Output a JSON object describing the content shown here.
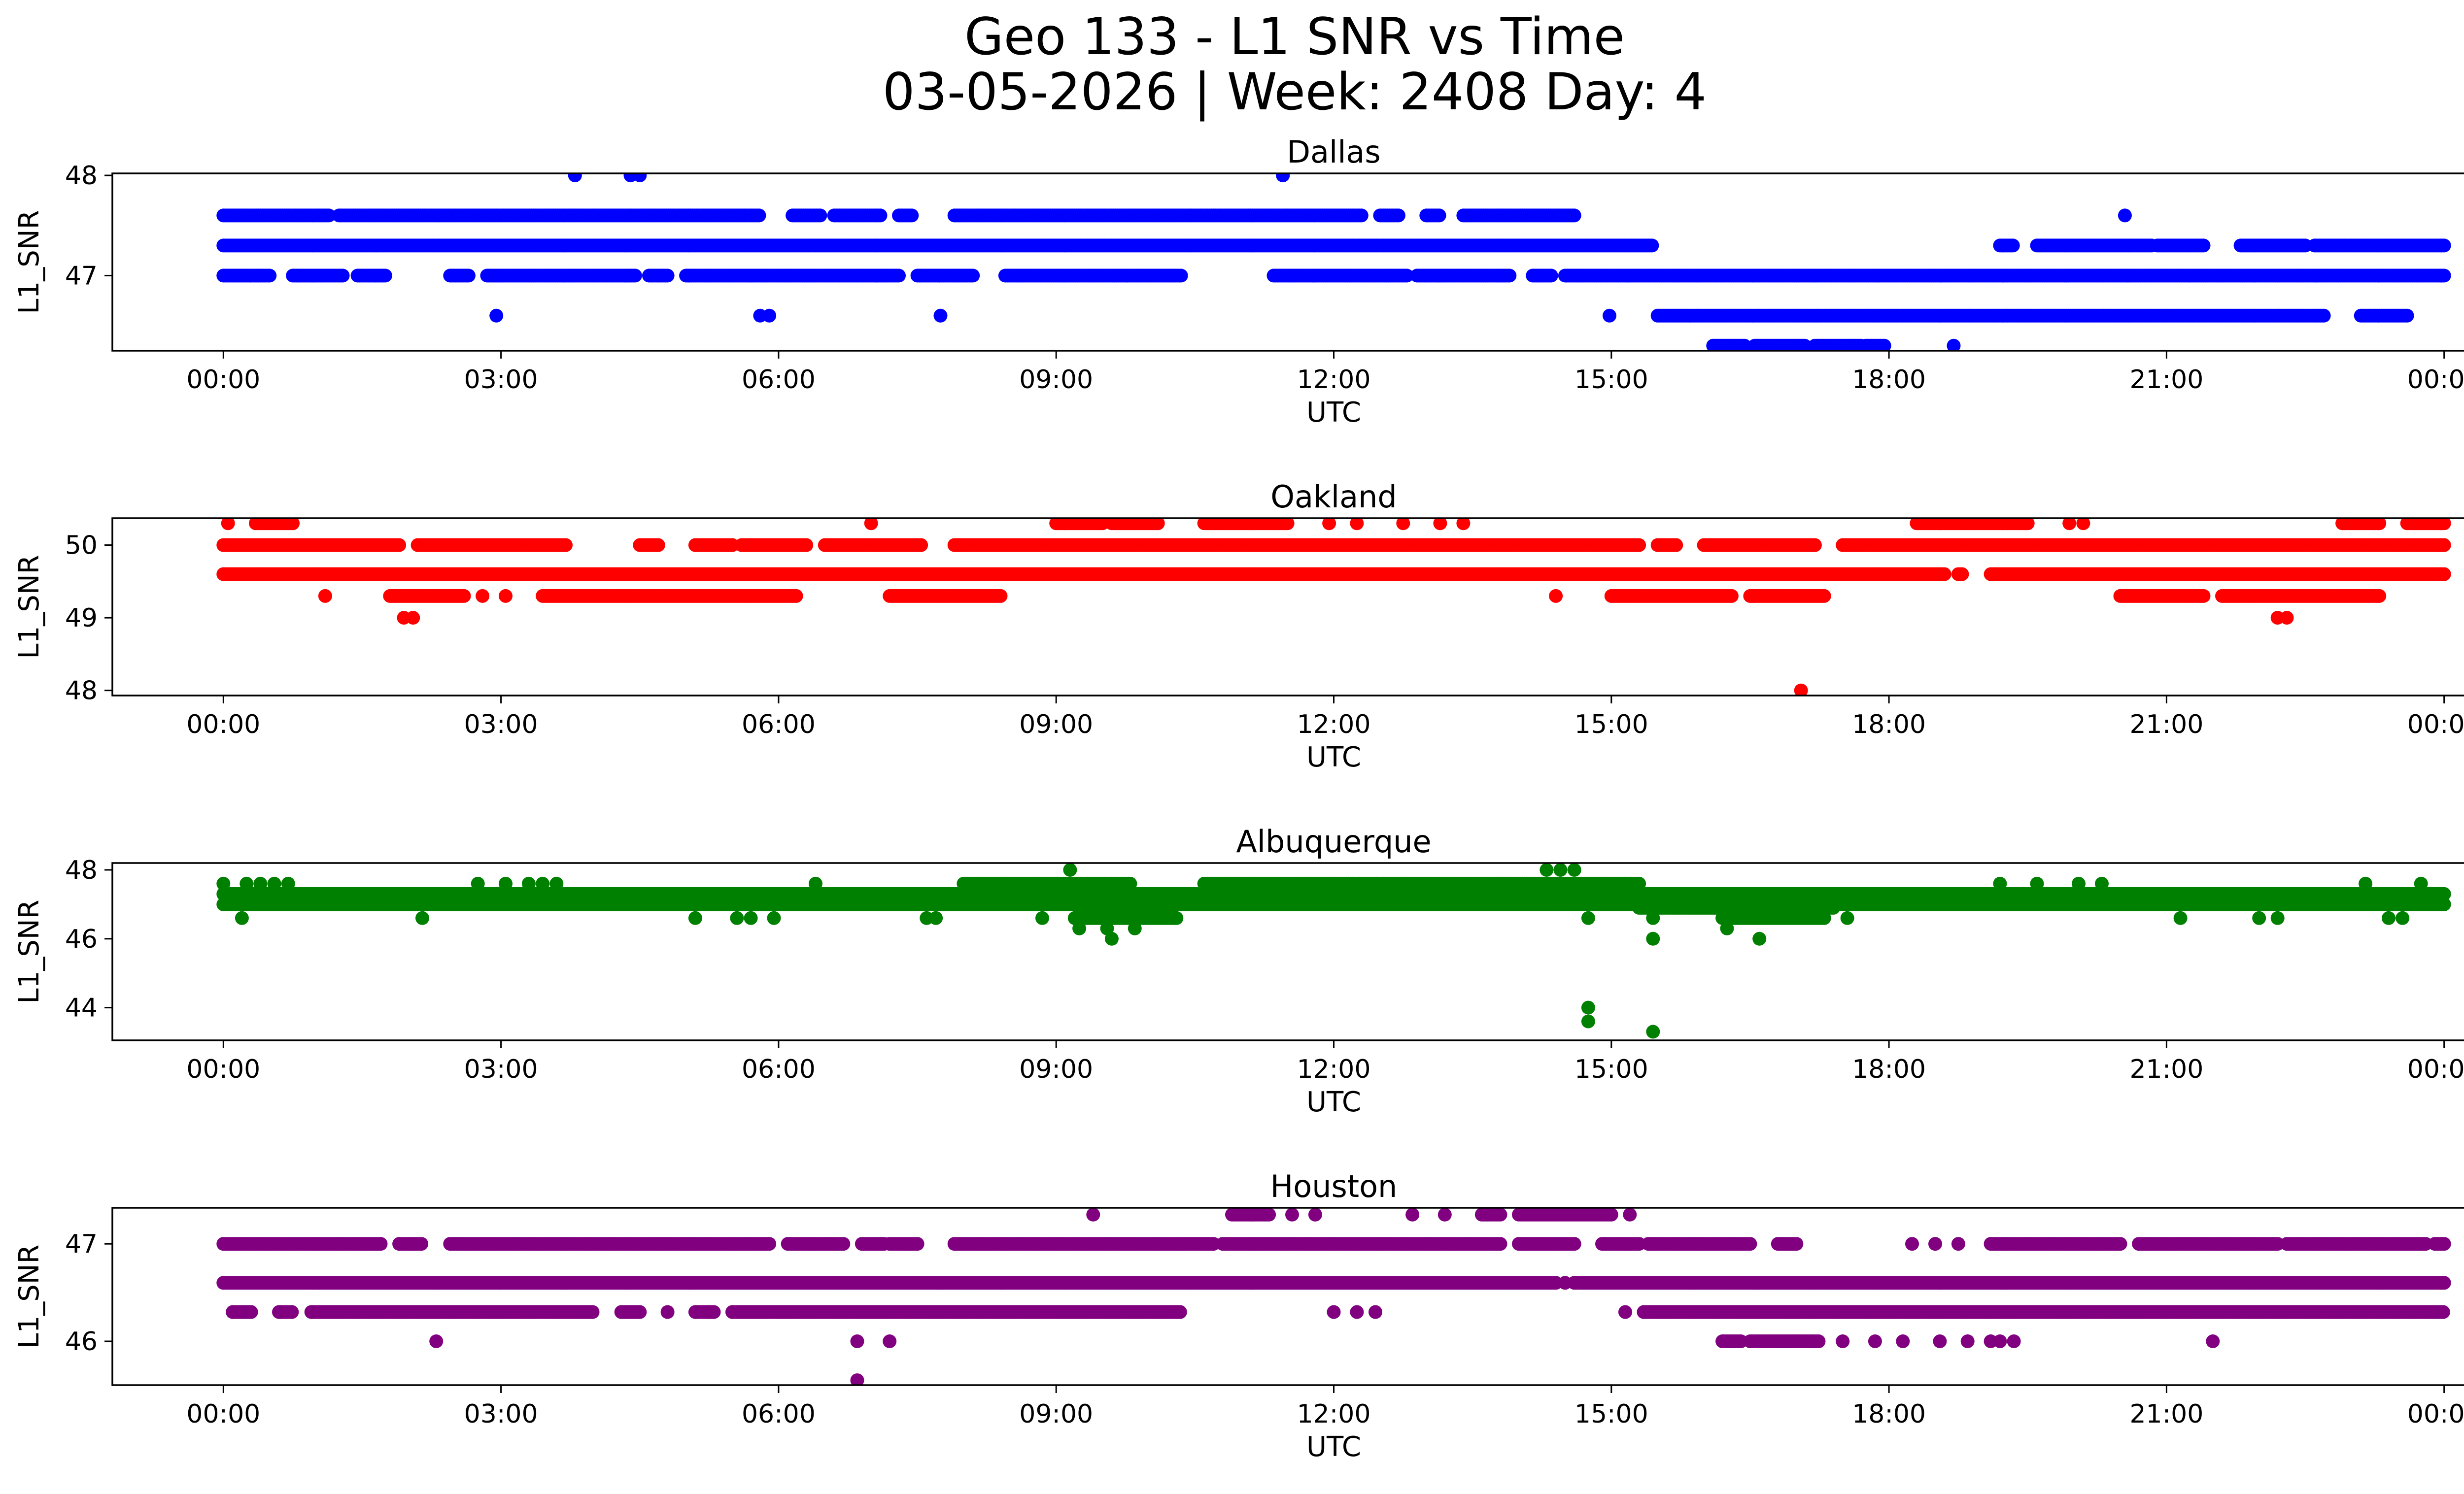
{
  "suptitle": {
    "line1": "Geo 133 - L1 SNR vs Time",
    "line2": "03-05-2026 | Week: 2408 Day: 4"
  },
  "chart_data": [
    {
      "type": "scatter",
      "title": "Dallas",
      "xlabel": "UTC",
      "ylabel": "L1_SNR",
      "color": "#0000ff",
      "xlim": [
        -1.2,
        25.2
      ],
      "ylim": [
        46.25,
        48.02
      ],
      "yticks": [
        47,
        48
      ],
      "xticks": [
        0,
        3,
        6,
        9,
        12,
        15,
        18,
        21,
        24
      ],
      "xticklabels": [
        "00:00",
        "03:00",
        "06:00",
        "09:00",
        "12:00",
        "15:00",
        "18:00",
        "21:00",
        "00:00"
      ],
      "series": [
        {
          "y": 47.3,
          "segments": [
            [
              0.0,
              15.45
            ]
          ]
        },
        {
          "y": 47.0,
          "segments": [
            [
              0.0,
              0.5
            ],
            [
              0.75,
              1.3
            ],
            [
              1.45,
              1.75
            ],
            [
              2.45,
              2.65
            ],
            [
              2.85,
              4.45
            ],
            [
              4.6,
              4.8
            ],
            [
              5.0,
              7.3
            ],
            [
              7.5,
              8.1
            ],
            [
              8.45,
              10.35
            ],
            [
              11.35,
              12.8
            ],
            [
              12.9,
              13.9
            ],
            [
              14.15,
              14.35
            ],
            [
              14.5,
              24.0
            ]
          ]
        },
        {
          "y": 47.6,
          "segments": [
            [
              0.0,
              1.15
            ],
            [
              1.25,
              5.8
            ],
            [
              6.15,
              6.45
            ],
            [
              6.6,
              7.1
            ],
            [
              7.3,
              7.45
            ],
            [
              7.9,
              12.3
            ],
            [
              12.5,
              12.7
            ],
            [
              13.0,
              13.15
            ],
            [
              13.4,
              14.6
            ]
          ]
        },
        {
          "y": 46.6,
          "segments": [
            [
              15.5,
              22.7
            ],
            [
              23.1,
              23.6
            ]
          ]
        },
        {
          "y": 46.3,
          "segments": [
            [
              16.1,
              16.45
            ],
            [
              16.55,
              17.1
            ],
            [
              17.2,
              17.7
            ],
            [
              17.75,
              17.95
            ]
          ]
        },
        {
          "y": 47.3,
          "segments": [
            [
              19.2,
              19.35
            ],
            [
              19.6,
              20.85
            ],
            [
              20.9,
              21.4
            ],
            [
              21.8,
              22.5
            ],
            [
              22.6,
              24.0
            ]
          ]
        }
      ],
      "points": [
        {
          "x": 2.95,
          "y": 46.6
        },
        {
          "x": 5.8,
          "y": 46.6
        },
        {
          "x": 5.9,
          "y": 46.6
        },
        {
          "x": 7.75,
          "y": 46.6
        },
        {
          "x": 14.98,
          "y": 46.6
        },
        {
          "x": 18.7,
          "y": 46.3
        },
        {
          "x": 3.8,
          "y": 48.0
        },
        {
          "x": 4.4,
          "y": 48.0
        },
        {
          "x": 4.5,
          "y": 48.0
        },
        {
          "x": 11.45,
          "y": 48.0
        },
        {
          "x": 20.55,
          "y": 47.6
        }
      ]
    },
    {
      "type": "scatter",
      "title": "Oakland",
      "xlabel": "UTC",
      "ylabel": "L1_SNR",
      "color": "#ff0000",
      "xlim": [
        -1.2,
        25.2
      ],
      "ylim": [
        47.93,
        50.37
      ],
      "yticks": [
        48,
        49,
        50
      ],
      "xticks": [
        0,
        3,
        6,
        9,
        12,
        15,
        18,
        21,
        24
      ],
      "xticklabels": [
        "00:00",
        "03:00",
        "06:00",
        "09:00",
        "12:00",
        "15:00",
        "18:00",
        "21:00",
        "00:00"
      ],
      "series": [
        {
          "y": 49.6,
          "segments": [
            [
              0.0,
              18.6
            ],
            [
              18.75,
              18.8
            ],
            [
              19.1,
              24.0
            ]
          ]
        },
        {
          "y": 50.0,
          "segments": [
            [
              0.0,
              1.9
            ],
            [
              2.1,
              3.7
            ],
            [
              4.5,
              4.7
            ],
            [
              5.1,
              5.5
            ],
            [
              5.6,
              6.3
            ],
            [
              6.5,
              7.55
            ],
            [
              7.9,
              15.3
            ],
            [
              15.5,
              15.7
            ],
            [
              16.0,
              17.2
            ],
            [
              17.5,
              24.0
            ]
          ]
        },
        {
          "y": 49.3,
          "segments": [
            [
              1.8,
              2.6
            ],
            [
              3.45,
              6.2
            ],
            [
              7.2,
              8.4
            ],
            [
              15.0,
              16.3
            ],
            [
              16.5,
              17.3
            ],
            [
              20.5,
              21.4
            ],
            [
              21.6,
              23.3
            ]
          ]
        },
        {
          "y": 50.3,
          "segments": [
            [
              0.35,
              0.75
            ],
            [
              9.0,
              9.5
            ],
            [
              9.6,
              10.1
            ],
            [
              10.6,
              11.5
            ],
            [
              18.3,
              19.5
            ],
            [
              22.9,
              23.3
            ],
            [
              23.6,
              24.0
            ]
          ]
        }
      ],
      "points": [
        {
          "x": 0.05,
          "y": 50.3
        },
        {
          "x": 7.0,
          "y": 50.3
        },
        {
          "x": 11.95,
          "y": 50.3
        },
        {
          "x": 12.25,
          "y": 50.3
        },
        {
          "x": 12.75,
          "y": 50.3
        },
        {
          "x": 13.15,
          "y": 50.3
        },
        {
          "x": 13.4,
          "y": 50.3
        },
        {
          "x": 19.95,
          "y": 50.3
        },
        {
          "x": 20.1,
          "y": 50.3
        },
        {
          "x": 1.1,
          "y": 49.3
        },
        {
          "x": 2.8,
          "y": 49.3
        },
        {
          "x": 3.05,
          "y": 49.3
        },
        {
          "x": 14.4,
          "y": 49.3
        },
        {
          "x": 1.95,
          "y": 49.0
        },
        {
          "x": 2.05,
          "y": 49.0
        },
        {
          "x": 22.2,
          "y": 49.0
        },
        {
          "x": 22.3,
          "y": 49.0
        },
        {
          "x": 17.05,
          "y": 48.0
        }
      ]
    },
    {
      "type": "scatter",
      "title": "Albuquerque",
      "xlabel": "UTC",
      "ylabel": "L1_SNR",
      "color": "#008000",
      "xlim": [
        -1.2,
        25.2
      ],
      "ylim": [
        43.05,
        48.2
      ],
      "yticks": [
        44,
        46,
        48
      ],
      "xticks": [
        0,
        3,
        6,
        9,
        12,
        15,
        18,
        21,
        24
      ],
      "xticklabels": [
        "00:00",
        "03:00",
        "06:00",
        "09:00",
        "12:00",
        "15:00",
        "18:00",
        "21:00",
        "00:00"
      ],
      "series": [
        {
          "y": 47.0,
          "segments": [
            [
              0.0,
              24.0
            ]
          ]
        },
        {
          "y": 47.3,
          "segments": [
            [
              0.0,
              24.0
            ]
          ]
        },
        {
          "y": 47.6,
          "segments": [
            [
              8.0,
              9.8
            ],
            [
              10.6,
              15.3
            ]
          ]
        },
        {
          "y": 46.6,
          "segments": [
            [
              9.2,
              10.3
            ],
            [
              16.2,
              17.3
            ]
          ]
        },
        {
          "y": 46.9,
          "segments": [
            [
              15.3,
              17.4
            ]
          ]
        }
      ],
      "points": [
        {
          "x": 0.0,
          "y": 47.6
        },
        {
          "x": 0.25,
          "y": 47.6
        },
        {
          "x": 0.4,
          "y": 47.6
        },
        {
          "x": 0.55,
          "y": 47.6
        },
        {
          "x": 0.7,
          "y": 47.6
        },
        {
          "x": 2.75,
          "y": 47.6
        },
        {
          "x": 3.05,
          "y": 47.6
        },
        {
          "x": 3.3,
          "y": 47.6
        },
        {
          "x": 3.45,
          "y": 47.6
        },
        {
          "x": 3.6,
          "y": 47.6
        },
        {
          "x": 6.4,
          "y": 47.6
        },
        {
          "x": 19.2,
          "y": 47.6
        },
        {
          "x": 19.6,
          "y": 47.6
        },
        {
          "x": 20.05,
          "y": 47.6
        },
        {
          "x": 20.3,
          "y": 47.6
        },
        {
          "x": 23.15,
          "y": 47.6
        },
        {
          "x": 23.75,
          "y": 47.6
        },
        {
          "x": 0.2,
          "y": 46.6
        },
        {
          "x": 2.15,
          "y": 46.6
        },
        {
          "x": 5.1,
          "y": 46.6
        },
        {
          "x": 5.55,
          "y": 46.6
        },
        {
          "x": 5.7,
          "y": 46.6
        },
        {
          "x": 5.95,
          "y": 46.6
        },
        {
          "x": 7.6,
          "y": 46.6
        },
        {
          "x": 7.7,
          "y": 46.6
        },
        {
          "x": 8.85,
          "y": 46.6
        },
        {
          "x": 14.75,
          "y": 46.6
        },
        {
          "x": 15.45,
          "y": 46.6
        },
        {
          "x": 17.55,
          "y": 46.6
        },
        {
          "x": 21.15,
          "y": 46.6
        },
        {
          "x": 22.0,
          "y": 46.6
        },
        {
          "x": 22.2,
          "y": 46.6
        },
        {
          "x": 23.4,
          "y": 46.6
        },
        {
          "x": 23.55,
          "y": 46.6
        },
        {
          "x": 9.25,
          "y": 46.3
        },
        {
          "x": 9.55,
          "y": 46.3
        },
        {
          "x": 9.85,
          "y": 46.3
        },
        {
          "x": 16.25,
          "y": 46.3
        },
        {
          "x": 9.6,
          "y": 46.0
        },
        {
          "x": 15.45,
          "y": 46.0
        },
        {
          "x": 16.6,
          "y": 46.0
        },
        {
          "x": 9.15,
          "y": 48.0
        },
        {
          "x": 14.3,
          "y": 48.0
        },
        {
          "x": 14.45,
          "y": 48.0
        },
        {
          "x": 14.6,
          "y": 48.0
        },
        {
          "x": 14.75,
          "y": 44.0
        },
        {
          "x": 14.75,
          "y": 43.6
        },
        {
          "x": 15.45,
          "y": 43.3
        }
      ]
    },
    {
      "type": "scatter",
      "title": "Houston",
      "xlabel": "UTC",
      "ylabel": "L1_SNR",
      "color": "#800080",
      "xlim": [
        -1.2,
        25.2
      ],
      "ylim": [
        45.55,
        47.37
      ],
      "yticks": [
        46,
        47
      ],
      "xticks": [
        0,
        3,
        6,
        9,
        12,
        15,
        18,
        21,
        24
      ],
      "xticklabels": [
        "00:00",
        "03:00",
        "06:00",
        "09:00",
        "12:00",
        "15:00",
        "18:00",
        "21:00",
        "00:00"
      ],
      "series": [
        {
          "y": 46.6,
          "segments": [
            [
              0.0,
              14.4
            ],
            [
              14.6,
              24.0
            ]
          ]
        },
        {
          "y": 47.0,
          "segments": [
            [
              0.0,
              1.7
            ],
            [
              1.9,
              2.15
            ],
            [
              2.45,
              2.6
            ],
            [
              2.6,
              5.9
            ],
            [
              6.1,
              6.7
            ],
            [
              6.9,
              7.15
            ],
            [
              7.2,
              7.5
            ],
            [
              7.9,
              10.7
            ],
            [
              10.8,
              13.8
            ],
            [
              14.0,
              14.6
            ],
            [
              14.9,
              15.3
            ],
            [
              15.4,
              16.5
            ],
            [
              16.8,
              17.0
            ],
            [
              19.1,
              20.5
            ],
            [
              20.7,
              22.2
            ],
            [
              22.3,
              23.8
            ],
            [
              23.9,
              24.0
            ]
          ]
        },
        {
          "y": 46.3,
          "segments": [
            [
              0.1,
              0.3
            ],
            [
              0.6,
              0.75
            ],
            [
              0.95,
              4.0
            ],
            [
              4.3,
              4.5
            ],
            [
              5.1,
              5.3
            ],
            [
              5.5,
              10.35
            ],
            [
              15.35,
              24.0
            ]
          ]
        },
        {
          "y": 47.3,
          "segments": [
            [
              10.9,
              11.3
            ],
            [
              14.0,
              15.0
            ],
            [
              13.6,
              13.8
            ]
          ]
        },
        {
          "y": 46.0,
          "segments": [
            [
              16.2,
              16.4
            ],
            [
              16.5,
              17.25
            ]
          ]
        }
      ],
      "points": [
        {
          "x": 4.8,
          "y": 46.3
        },
        {
          "x": 12.0,
          "y": 46.3
        },
        {
          "x": 12.25,
          "y": 46.3
        },
        {
          "x": 12.45,
          "y": 46.3
        },
        {
          "x": 15.15,
          "y": 46.3
        },
        {
          "x": 14.5,
          "y": 46.6
        },
        {
          "x": 9.4,
          "y": 47.3
        },
        {
          "x": 11.55,
          "y": 47.3
        },
        {
          "x": 11.8,
          "y": 47.3
        },
        {
          "x": 12.85,
          "y": 47.3
        },
        {
          "x": 13.2,
          "y": 47.3
        },
        {
          "x": 15.2,
          "y": 47.3
        },
        {
          "x": 18.25,
          "y": 47.0
        },
        {
          "x": 18.5,
          "y": 47.0
        },
        {
          "x": 18.75,
          "y": 47.0
        },
        {
          "x": 2.3,
          "y": 46.0
        },
        {
          "x": 6.85,
          "y": 46.0
        },
        {
          "x": 7.2,
          "y": 46.0
        },
        {
          "x": 17.5,
          "y": 46.0
        },
        {
          "x": 17.85,
          "y": 46.0
        },
        {
          "x": 18.15,
          "y": 46.0
        },
        {
          "x": 18.55,
          "y": 46.0
        },
        {
          "x": 18.85,
          "y": 46.0
        },
        {
          "x": 19.1,
          "y": 46.0
        },
        {
          "x": 19.2,
          "y": 46.0
        },
        {
          "x": 19.35,
          "y": 46.0
        },
        {
          "x": 21.5,
          "y": 46.0
        },
        {
          "x": 6.85,
          "y": 45.6
        }
      ]
    }
  ]
}
